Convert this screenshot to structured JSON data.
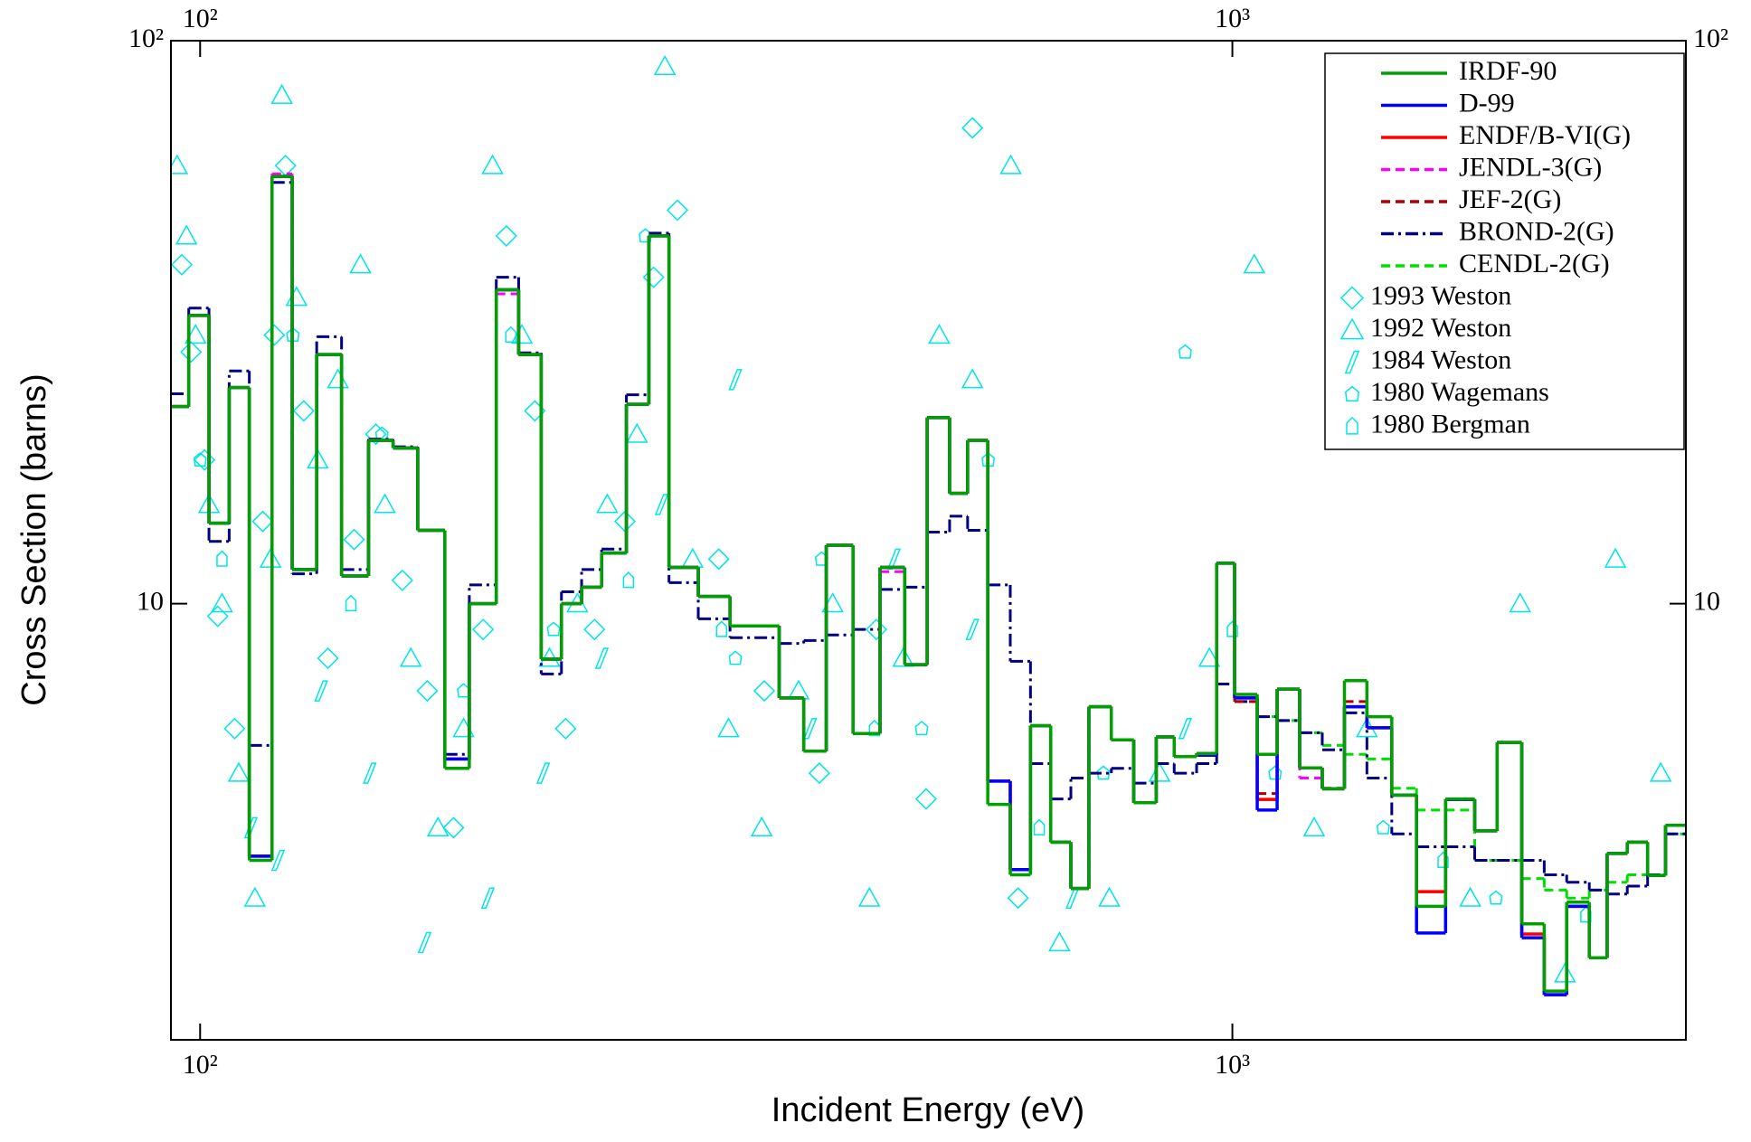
{
  "chart_data": {
    "type": "step",
    "xlabel": "Incident Energy (eV)",
    "ylabel": "Cross Section (barns)",
    "xscale": "log",
    "yscale": "log",
    "xlim": [
      93.7,
      2750
    ],
    "ylim": [
      1.68,
      100
    ],
    "xticks": [
      {
        "value": 100,
        "label": "10²"
      },
      {
        "value": 1000,
        "label": "10³"
      }
    ],
    "yticks": [
      10,
      {
        "value": 100,
        "label": "10²"
      }
    ],
    "legend": "upper right",
    "bin_edges": [
      93.7,
      97.5,
      102.0,
      106.7,
      111.6,
      117.4,
      122.8,
      129.7,
      137.1,
      145.6,
      153.8,
      162.5,
      172.6,
      182.3,
      193.6,
      203.5,
      214.0,
      223.9,
      234.2,
      244.9,
      258.8,
      272.1,
      284.6,
      303.8,
      326.1,
      363.9,
      384.4,
      404.2,
      429.1,
      455.7,
      481.5,
      506.2,
      532.2,
      554.0,
      579.5,
      609.3,
      637.4,
      666.8,
      697.5,
      726.1,
      763.4,
      802.5,
      843.8,
      878.3,
      923.3,
      965.6,
      1005,
      1057,
      1105,
      1162,
      1222,
      1284,
      1350,
      1427,
      1508,
      1609,
      1717,
      1805,
      1907,
      2005,
      2108,
      2217,
      2307,
      2413,
      2525,
      2628,
      2749
    ],
    "series": [
      {
        "name": "IRDF-90",
        "color": "#00a000",
        "style": "solid",
        "values": [
          22.4,
          32.5,
          13.9,
          24.2,
          3.5,
          57.4,
          11.5,
          27.7,
          11.2,
          19.5,
          18.9,
          13.5,
          5.1,
          10.0,
          36.1,
          27.7,
          7.97,
          10.0,
          10.7,
          12.3,
          22.6,
          45.0,
          11.6,
          10.3,
          9.13,
          6.8,
          5.47,
          12.7,
          5.88,
          11.6,
          7.79,
          21.4,
          15.7,
          19.5,
          4.4,
          3.3,
          6.07,
          3.77,
          3.12,
          6.56,
          5.73,
          4.43,
          5.8,
          5.35,
          5.42,
          11.8,
          6.9,
          5.4,
          7.05,
          5.11,
          4.69,
          7.3,
          6.3,
          4.57,
          2.9,
          4.5,
          3.95,
          5.67,
          2.7,
          2.05,
          2.95,
          2.35,
          3.6,
          3.77,
          3.29,
          4.04
        ]
      },
      {
        "name": "D-99",
        "color": "#0000ff",
        "style": "solid",
        "values": [
          22.4,
          32.5,
          13.9,
          24.2,
          3.56,
          57.4,
          11.5,
          27.7,
          11.2,
          19.5,
          18.9,
          13.5,
          5.3,
          10.0,
          36.1,
          27.7,
          7.97,
          10.0,
          10.7,
          12.3,
          22.6,
          45.0,
          11.6,
          10.3,
          9.13,
          6.8,
          5.47,
          12.7,
          5.88,
          11.6,
          7.79,
          21.4,
          15.7,
          19.5,
          4.84,
          3.37,
          6.07,
          3.77,
          3.12,
          6.56,
          5.73,
          4.43,
          5.8,
          5.35,
          5.38,
          11.8,
          6.8,
          4.3,
          7.05,
          5.11,
          4.69,
          6.56,
          6.02,
          4.57,
          2.6,
          4.49,
          3.95,
          5.67,
          2.55,
          2.02,
          2.9,
          2.35,
          3.6,
          3.77,
          3.29,
          4.04
        ]
      },
      {
        "name": "ENDF/B-VI(G)",
        "color": "#ff0000",
        "style": "solid",
        "values": [
          22.4,
          32.5,
          13.9,
          24.2,
          3.56,
          57.4,
          11.5,
          27.7,
          11.2,
          19.5,
          18.9,
          13.5,
          5.3,
          10.0,
          36.1,
          27.7,
          7.97,
          10.0,
          10.7,
          12.3,
          22.6,
          45.0,
          11.6,
          10.3,
          9.13,
          6.8,
          5.47,
          12.7,
          5.88,
          11.6,
          7.79,
          21.4,
          15.7,
          19.5,
          4.84,
          3.37,
          6.07,
          3.77,
          3.12,
          6.56,
          5.73,
          4.43,
          5.8,
          5.35,
          5.42,
          11.8,
          6.8,
          4.49,
          7.05,
          5.11,
          4.69,
          6.56,
          6.02,
          4.57,
          3.08,
          4.49,
          3.95,
          5.67,
          2.59,
          2.02,
          2.9,
          2.35,
          3.6,
          3.77,
          3.29,
          4.04
        ]
      },
      {
        "name": "JENDL-3(G)",
        "color": "#ff00ff",
        "style": "dashed",
        "values": [
          22.4,
          32.5,
          13.9,
          24.2,
          3.56,
          58,
          11.5,
          27.7,
          11.2,
          19.5,
          18.9,
          13.5,
          5.3,
          10.0,
          35.5,
          27.7,
          7.97,
          10.0,
          10.7,
          12.3,
          22.6,
          45.0,
          11.6,
          10.3,
          9.13,
          6.8,
          5.47,
          12.7,
          5.88,
          11.4,
          7.79,
          21.4,
          15.7,
          19.5,
          4.84,
          3.37,
          6.07,
          3.77,
          3.12,
          6.56,
          5.73,
          4.43,
          5.8,
          5.35,
          5.42,
          11.8,
          6.8,
          4.49,
          7.05,
          4.9,
          4.69,
          6.56,
          6.02,
          4.57,
          2.6,
          4.49,
          3.95,
          5.67,
          2.59,
          2.02,
          2.9,
          2.35,
          3.6,
          3.77,
          3.29,
          4.04
        ]
      },
      {
        "name": "JEF-2(G)",
        "color": "#b00000",
        "style": "dashed",
        "values": [
          22.4,
          32.5,
          13.9,
          24.2,
          3.56,
          57.4,
          11.5,
          27.7,
          11.2,
          19.5,
          18.9,
          13.5,
          5.3,
          10.0,
          36.1,
          27.7,
          7.97,
          10.0,
          10.7,
          12.3,
          22.6,
          45.0,
          11.6,
          10.3,
          9.13,
          6.8,
          5.47,
          12.7,
          5.88,
          11.6,
          7.79,
          21.4,
          15.7,
          19.5,
          4.84,
          3.37,
          6.07,
          3.77,
          3.12,
          6.56,
          5.73,
          4.43,
          5.8,
          5.35,
          5.42,
          11.8,
          6.7,
          4.6,
          7.05,
          5.11,
          4.7,
          6.7,
          6.02,
          4.57,
          3.08,
          4.49,
          3.95,
          5.67,
          2.59,
          2.02,
          2.9,
          2.35,
          3.6,
          3.77,
          3.29,
          4.04
        ]
      },
      {
        "name": "BROND-2(G)",
        "color": "#000080",
        "style": "dashdot",
        "values": [
          23.6,
          33.5,
          12.9,
          25.9,
          5.6,
          56.0,
          11.3,
          29.8,
          11.5,
          19.6,
          19.0,
          13.5,
          5.4,
          10.8,
          38.0,
          27.9,
          7.5,
          10.5,
          11.5,
          12.5,
          23.5,
          45.5,
          10.9,
          9.4,
          8.7,
          8.5,
          8.6,
          8.8,
          9.0,
          10.6,
          10.7,
          13.4,
          14.3,
          13.5,
          10.8,
          7.9,
          5.2,
          4.5,
          4.9,
          5.0,
          5.1,
          4.8,
          5.2,
          5.0,
          5.2,
          7.2,
          6.7,
          6.3,
          6.2,
          5.9,
          5.5,
          6.4,
          4.9,
          3.9,
          3.7,
          3.7,
          3.5,
          3.5,
          3.5,
          3.3,
          3.2,
          3.1,
          3.05,
          3.15,
          3.3,
          3.9
        ]
      },
      {
        "name": "CENDL-2(G)",
        "color": "#00e000",
        "style": "dashed",
        "values": [
          22.4,
          32.5,
          13.9,
          24.2,
          3.56,
          57.4,
          11.5,
          27.7,
          11.2,
          19.5,
          18.9,
          13.5,
          5.3,
          10.0,
          36.1,
          27.7,
          7.97,
          10.0,
          10.7,
          12.3,
          22.6,
          45.0,
          11.6,
          10.3,
          9.13,
          6.8,
          5.47,
          12.7,
          5.88,
          11.6,
          7.79,
          21.4,
          15.7,
          19.5,
          4.84,
          3.37,
          6.07,
          3.77,
          3.12,
          6.56,
          5.73,
          4.43,
          5.8,
          5.35,
          5.42,
          11.8,
          6.8,
          6.3,
          6.2,
          5.9,
          5.6,
          5.4,
          5.3,
          4.7,
          4.3,
          4.3,
          3.5,
          3.5,
          3.25,
          3.1,
          3.0,
          3.1,
          3.2,
          3.3,
          3.3,
          3.9
        ]
      }
    ],
    "points": [
      {
        "name": "1993 Weston",
        "color": "#00e5e5",
        "marker": "diamond",
        "x": [
          96,
          98,
          101,
          104,
          108,
          115,
          118,
          121,
          126,
          133,
          141,
          148,
          157,
          166,
          176,
          188,
          198,
          211,
          226,
          241,
          258,
          275,
          290,
          318,
          352,
          398,
          452,
          505,
          560,
          620
        ],
        "y": [
          40,
          28,
          18,
          9.5,
          6,
          14,
          30,
          60,
          22,
          8,
          13,
          20,
          11,
          7,
          4,
          9,
          45,
          22,
          6,
          9,
          14,
          38,
          50,
          12,
          7,
          5,
          9,
          4.5,
          70,
          3
        ]
      },
      {
        "name": "1992 Weston",
        "color": "#00e5e5",
        "marker": "triangle",
        "x": [
          95,
          97,
          99,
          102,
          105,
          109,
          113,
          117,
          120,
          124,
          130,
          136,
          143,
          151,
          160,
          170,
          180,
          192,
          205,
          218,
          232,
          248,
          265,
          282,
          300,
          325,
          350,
          380,
          410,
          445,
          480,
          520,
          560,
          610,
          680,
          760,
          850,
          950,
          1050,
          1200,
          1350,
          1500,
          1700,
          1900,
          2100,
          2350,
          2600
        ],
        "y": [
          60,
          45,
          30,
          15,
          10,
          5,
          3,
          12,
          80,
          35,
          18,
          25,
          40,
          15,
          8,
          4,
          6,
          60,
          30,
          8,
          10,
          15,
          20,
          90,
          12,
          6,
          4,
          7,
          10,
          3,
          8,
          30,
          25,
          60,
          2.5,
          3,
          5,
          8,
          40,
          4,
          6,
          25,
          3,
          10,
          2.2,
          12,
          5
        ]
      },
      {
        "name": "1984 Weston",
        "color": "#00e5e5",
        "marker": "parallelogram",
        "x": [
          112,
          119,
          131,
          146,
          165,
          190,
          215,
          245,
          280,
          330,
          390,
          470,
          560,
          700,
          900
        ],
        "y": [
          4,
          3.5,
          7,
          5,
          2.5,
          3,
          5,
          8,
          15,
          25,
          6,
          12,
          9,
          3,
          6
        ]
      },
      {
        "name": "1980 Wagemans",
        "color": "#00e5e5",
        "marker": "pentagon",
        "x": [
          100,
          123,
          150,
          180,
          220,
          270,
          330,
          400,
          500,
          580,
          750,
          900,
          1100,
          1400,
          1800
        ],
        "y": [
          18,
          30,
          20,
          7,
          9,
          45,
          8,
          12,
          6,
          18,
          5,
          28,
          5,
          4,
          3
        ]
      },
      {
        "name": "1980 Bergman",
        "color": "#00e5e5",
        "marker": "house",
        "x": [
          105,
          140,
          200,
          260,
          320,
          450,
          650,
          1000,
          1600,
          2200
        ],
        "y": [
          12,
          10,
          30,
          11,
          9,
          6,
          4,
          9,
          3.5,
          2.8
        ]
      }
    ]
  }
}
